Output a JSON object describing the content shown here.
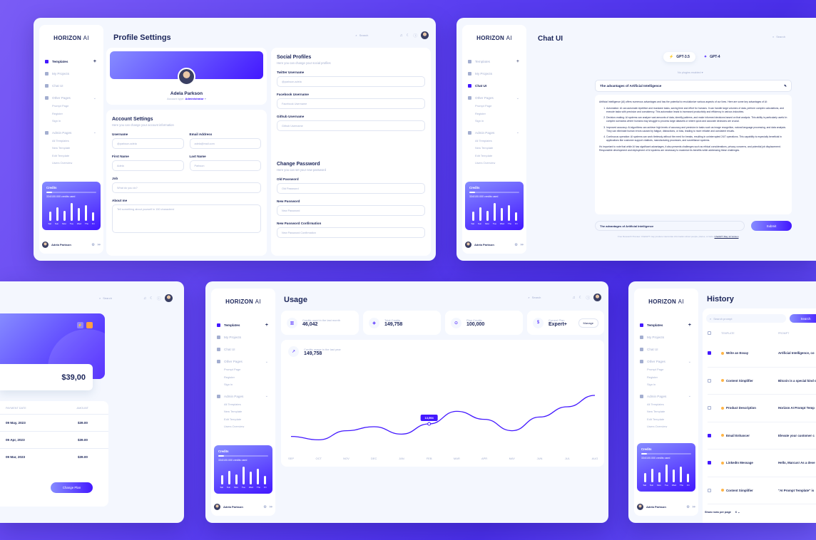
{
  "brand": {
    "logo_bold": "HORIZON",
    "logo_light": "AI"
  },
  "nav": {
    "templates": "Templates",
    "my_projects": "My Projects",
    "chat_ui": "Chat UI",
    "other_pages": "Other Pages",
    "other_sub": [
      "Prompt Page",
      "Register",
      "Sign in"
    ],
    "admin_pages": "Admin Pages",
    "admin_sub": [
      "All Templates",
      "New Template",
      "Edit Template",
      "Users Overview"
    ]
  },
  "credits": {
    "title": "Credits",
    "value": "334/100.000 credits used",
    "days": [
      "Sat",
      "Sun",
      "Mon",
      "Tue",
      "Wed",
      "Thu",
      "Fri"
    ],
    "bars": [
      0.5,
      0.75,
      0.55,
      0.95,
      0.7,
      0.85,
      0.45
    ]
  },
  "user": {
    "name": "Adela Parkson"
  },
  "search_placeholder": "Search",
  "profile": {
    "title": "Profile Settings",
    "name": "Adela Parkson",
    "account_type_label": "Account type:",
    "account_type": "Administrator",
    "account": {
      "title": "Account Settings",
      "subtitle": "Here you can change your account information",
      "username_label": "Username",
      "username": "@parkson.adela",
      "email_label": "Email Address",
      "email": "adela@mail.com",
      "first_label": "First Name",
      "first": "Adela",
      "last_label": "Last Name",
      "last": "Parkson",
      "job_label": "Job",
      "job": "What do you do?",
      "about_label": "About me",
      "about": "Tell something about yourself in 150 characters!"
    },
    "social": {
      "title": "Social Profiles",
      "subtitle": "Here you can change your social profiles",
      "twitter_label": "Twitter Username",
      "twitter": "@parkson.adela",
      "facebook_label": "Facebook Username",
      "facebook": "Facebook Username",
      "github_label": "Github Username",
      "github": "Github Username"
    },
    "password": {
      "title": "Change Password",
      "subtitle": "Here you can set your new password",
      "old_label": "Old Password",
      "old": "Old Password",
      "new_label": "New Password",
      "new": "New Password",
      "confirm_label": "New Password Confirmation",
      "confirm": "New Password Confirmation"
    }
  },
  "chat": {
    "title": "Chat UI",
    "model_a": "GPT-3.5",
    "model_b": "GPT-4",
    "plugins": "No plugins enabled ▾",
    "prompt": "The advantages of Artificial Intelligence",
    "intro": "Artificial Intelligence (AI) offers numerous advantages and has the potential to revolutionize various aspects of our lives. Here are some key advantages of AI:",
    "points": [
      "Automation: AI can automate repetitive and mundane tasks, saving time and effort for humans. It can handle large volumes of data, perform complex calculations, and execute tasks with precision and consistency. This automation leads to increased productivity and efficiency in various industries.",
      "Decision-making: AI systems can analyze vast amounts of data, identify patterns, and make informed decisions based on that analysis. This ability is particularly useful in complex scenarios where humans may struggle to process large datasets or where quick and accurate decisions are crucial.",
      "Improved accuracy: AI algorithms can achieve high levels of accuracy and precision in tasks such as image recognition, natural language processing, and data analysis. They can eliminate human errors caused by fatigue, distractions, or bias, leading to more reliable and consistent results.",
      "Continuous operation: AI systems can work tirelessly without the need for breaks, resulting in uninterrupted 24/7 operations. This capability is especially beneficial in applications like customer support chatbots, manufacturing processes, and surveillance systems."
    ],
    "outro": "It's important to note that while AI has significant advantages, it also presents challenges such as ethical considerations, privacy concerns, and potential job displacement. Responsible development and deployment of AI systems are necessary to maximize its benefits while addressing these challenges.",
    "input": "The advantages of Artificial Intelligence",
    "submit": "Submit",
    "footer": "Free Research Preview. ChatGPT may produce inaccurate information about people, places, or facts.",
    "footer_link": "ChatGPT May 12 Version"
  },
  "billing": {
    "amount": "$39,00",
    "col_date": "PAYMENT DATE",
    "col_amount": "AMOUNT",
    "rows": [
      {
        "date": "09 May, 2023",
        "amount": "$39.00"
      },
      {
        "date": "09 Apr, 2023",
        "amount": "$39.00"
      },
      {
        "date": "09 Mar, 2023",
        "amount": "$39.00"
      }
    ],
    "change_plan": "Change Plan"
  },
  "usage": {
    "title": "Usage",
    "stats": [
      {
        "label": "Credits used in the last month",
        "value": "46,042"
      },
      {
        "label": "Total Credits",
        "value": "149,758"
      },
      {
        "label": "Plan Credits",
        "value": "100,000"
      },
      {
        "label": "Current Plan",
        "value": "Expert+"
      }
    ],
    "manage": "Manage",
    "chart_label": "Credits usage in the last year",
    "chart_value": "149,758",
    "tooltip": "13,994"
  },
  "chart_data": {
    "type": "line",
    "categories": [
      "SEP",
      "OCT",
      "NOV",
      "DEC",
      "JAN",
      "FEB",
      "MAR",
      "APR",
      "MAY",
      "JUN",
      "JUL",
      "AUG"
    ],
    "series": [
      {
        "values": [
          18,
          12,
          28,
          35,
          22,
          40,
          62,
          48,
          28,
          52,
          70,
          90
        ]
      }
    ],
    "ylim": [
      0,
      100
    ],
    "title": "Credits usage in the last year",
    "grid": false
  },
  "history": {
    "title": "History",
    "search": "Search prompt",
    "search_btn": "Search",
    "col_template": "TEMPLATE",
    "col_prompt": "PROMPT",
    "rows": [
      {
        "checked": true,
        "template": "Write an Essay",
        "prompt": "Artificial Intelligence, co"
      },
      {
        "checked": false,
        "template": "Content Simplifier",
        "prompt": "Bitcoin is a special kind o"
      },
      {
        "checked": false,
        "template": "Product Description",
        "prompt": "Horizon AI Prompt Temp"
      },
      {
        "checked": true,
        "template": "Email Enhancer",
        "prompt": "Elevate your customer c"
      },
      {
        "checked": true,
        "template": "LinkedIn Message",
        "prompt": "Hello, Marcus! As a deve"
      },
      {
        "checked": false,
        "template": "Content Simplifier",
        "prompt": "\"AI Prompt Template\" is"
      }
    ],
    "rows_per_page": "Show rows per page",
    "rows_count": "6"
  }
}
